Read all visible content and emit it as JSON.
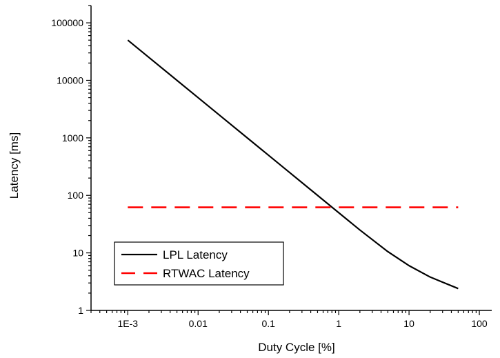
{
  "chart_data": {
    "type": "line",
    "title": "",
    "xlabel": "Duty Cycle [%]",
    "ylabel": "Latency [ms]",
    "xscale": "log",
    "yscale": "log",
    "xlim": [
      0.0003,
      150
    ],
    "ylim": [
      1,
      200000
    ],
    "grid": false,
    "legend_position": "bottom-left",
    "x_ticks": [
      {
        "value": 0.001,
        "label": "1E-3"
      },
      {
        "value": 0.01,
        "label": "0.01"
      },
      {
        "value": 0.1,
        "label": "0.1"
      },
      {
        "value": 1,
        "label": "1"
      },
      {
        "value": 10,
        "label": "10"
      },
      {
        "value": 100,
        "label": "100"
      }
    ],
    "y_ticks": [
      {
        "value": 1,
        "label": "1"
      },
      {
        "value": 10,
        "label": "10"
      },
      {
        "value": 100,
        "label": "100"
      },
      {
        "value": 1000,
        "label": "1000"
      },
      {
        "value": 10000,
        "label": "10000"
      },
      {
        "value": 100000,
        "label": "100000"
      }
    ],
    "series": [
      {
        "name": "LPL Latency",
        "color": "#000000",
        "style": "solid",
        "x": [
          0.001,
          0.002,
          0.005,
          0.01,
          0.02,
          0.05,
          0.1,
          0.2,
          0.5,
          1,
          2,
          5,
          10,
          20,
          50
        ],
        "y": [
          50000,
          25000,
          10000,
          5000,
          2500,
          1000,
          500,
          250,
          100,
          50,
          25,
          10.5,
          6,
          3.8,
          2.4
        ]
      },
      {
        "name": "RTWAC Latency",
        "color": "#ff0000",
        "style": "dashed",
        "x": [
          0.001,
          50
        ],
        "y": [
          62,
          62
        ]
      }
    ]
  }
}
